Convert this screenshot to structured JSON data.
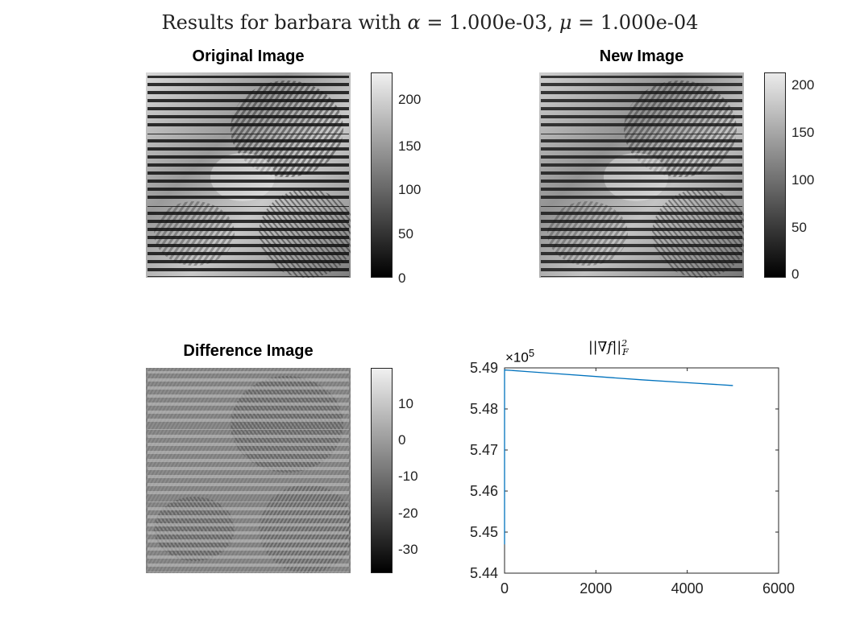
{
  "figure": {
    "title_text": "Results for barbara with",
    "alpha_symbol": "α",
    "alpha_value": "= 1.000e-03,",
    "mu_symbol": "μ",
    "mu_value": "= 1.000e-04"
  },
  "panels": {
    "original": {
      "title": "Original Image",
      "colorbar_ticks": [
        "200",
        "150",
        "100",
        "50",
        "0"
      ],
      "colorbar_range": [
        0,
        230
      ]
    },
    "new": {
      "title": "New Image",
      "colorbar_ticks": [
        "200",
        "150",
        "100",
        "50",
        "0"
      ],
      "colorbar_range": [
        0,
        215
      ]
    },
    "difference": {
      "title": "Difference Image",
      "colorbar_ticks": [
        "10",
        "0",
        "-10",
        "-20",
        "-30"
      ],
      "colorbar_range": [
        -37,
        19
      ]
    }
  },
  "chart_data": {
    "type": "line",
    "title": "||∇f||²_F",
    "title_main": "||∇f||",
    "title_sup": "2",
    "title_sub": "F",
    "y_exponent_base": "×10",
    "y_exponent_power": "5",
    "xlim": [
      0,
      6000
    ],
    "ylim": [
      5.44,
      5.49
    ],
    "xticks": [
      0,
      2000,
      4000,
      6000
    ],
    "xtick_labels": [
      "0",
      "2000",
      "4000",
      "6000"
    ],
    "yticks": [
      5.44,
      5.45,
      5.46,
      5.47,
      5.48,
      5.49
    ],
    "ytick_labels": [
      "5.44",
      "5.45",
      "5.46",
      "5.47",
      "5.48",
      "5.49"
    ],
    "series": [
      {
        "color": "#0072BD",
        "x": [
          0,
          0,
          1,
          500,
          1000,
          2000,
          3000,
          4000,
          5000
        ],
        "y": [
          5.447,
          5.4895,
          5.4895,
          5.4891,
          5.4887,
          5.4879,
          5.4871,
          5.4864,
          5.4857
        ]
      }
    ]
  }
}
